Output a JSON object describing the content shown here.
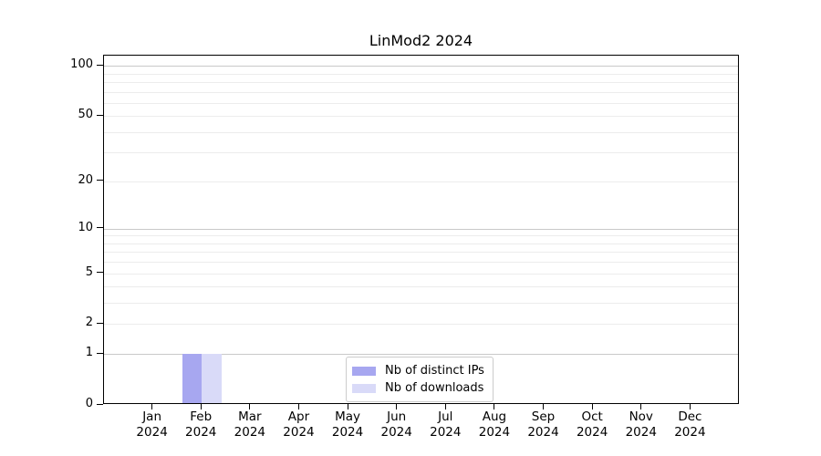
{
  "chart_data": {
    "type": "bar",
    "title": "LinMod2 2024",
    "categories": [
      {
        "line1": "Jan",
        "line2": "2024"
      },
      {
        "line1": "Feb",
        "line2": "2024"
      },
      {
        "line1": "Mar",
        "line2": "2024"
      },
      {
        "line1": "Apr",
        "line2": "2024"
      },
      {
        "line1": "May",
        "line2": "2024"
      },
      {
        "line1": "Jun",
        "line2": "2024"
      },
      {
        "line1": "Jul",
        "line2": "2024"
      },
      {
        "line1": "Aug",
        "line2": "2024"
      },
      {
        "line1": "Sep",
        "line2": "2024"
      },
      {
        "line1": "Oct",
        "line2": "2024"
      },
      {
        "line1": "Nov",
        "line2": "2024"
      },
      {
        "line1": "Dec",
        "line2": "2024"
      }
    ],
    "series": [
      {
        "name": "Nb of distinct IPs",
        "color": "#a7a7f0",
        "values": [
          0,
          1,
          0,
          0,
          0,
          0,
          0,
          0,
          0,
          0,
          0,
          0
        ]
      },
      {
        "name": "Nb of downloads",
        "color": "#d9daf8",
        "values": [
          0,
          1,
          0,
          0,
          0,
          0,
          0,
          0,
          0,
          0,
          0,
          0
        ]
      }
    ],
    "y_scale": "log1p",
    "ylim": [
      0,
      115
    ],
    "y_ticks_labeled": [
      0,
      1,
      2,
      5,
      10,
      20,
      50,
      100
    ],
    "y_grid_decade": [
      1,
      10,
      100
    ],
    "y_grid_light": [
      2,
      3,
      4,
      6,
      7,
      8,
      9,
      5,
      20,
      30,
      40,
      50,
      60,
      70,
      80,
      90
    ],
    "grid": "horizontal",
    "legend_position": "lower center",
    "colors": {
      "decade_grid": "#c9c9c9",
      "light_grid": "#ececec",
      "spine": "#000000",
      "background": "#ffffff"
    }
  }
}
